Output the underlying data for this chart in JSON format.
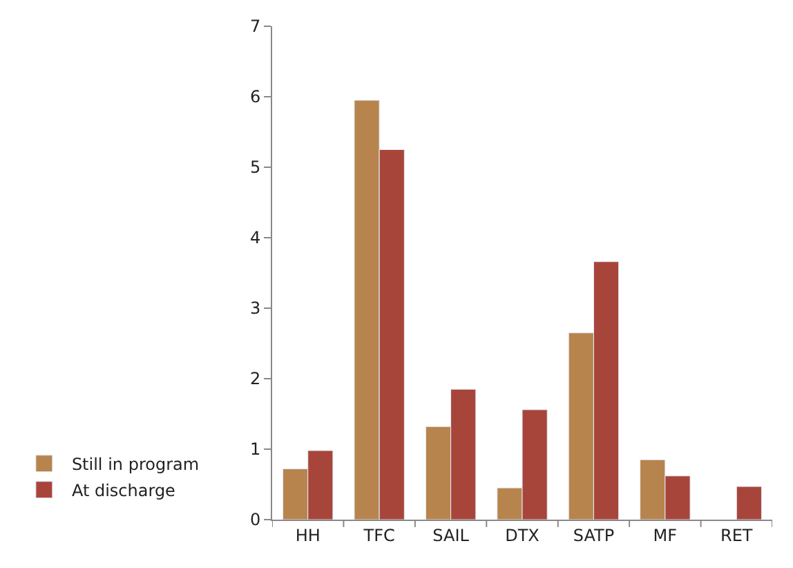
{
  "chart_data": {
    "type": "bar",
    "categories": [
      "HH",
      "TFC",
      "SAIL",
      "DTX",
      "SATP",
      "MF",
      "RET"
    ],
    "series": [
      {
        "name": "Still in program",
        "color": "#b8844e",
        "values": [
          0.72,
          5.95,
          1.32,
          0.45,
          2.65,
          0.85,
          null
        ]
      },
      {
        "name": "At discharge",
        "color": "#a8453b",
        "values": [
          0.98,
          5.25,
          1.85,
          1.56,
          3.66,
          0.62,
          0.47
        ]
      }
    ],
    "ylim": [
      0,
      7
    ],
    "yticks": [
      0,
      1,
      2,
      3,
      4,
      5,
      6,
      7
    ],
    "grid": false,
    "legend": "left"
  }
}
